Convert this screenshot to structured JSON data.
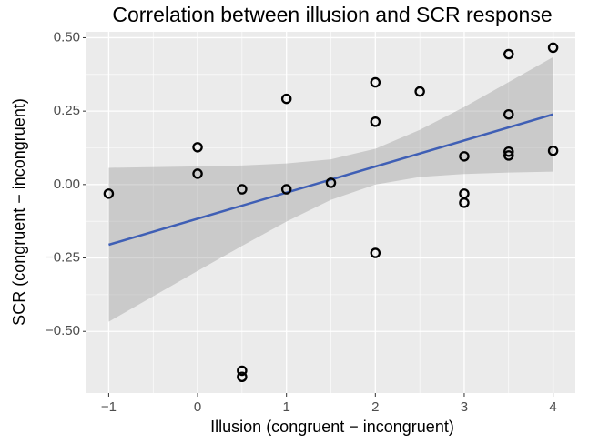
{
  "chart_data": {
    "type": "scatter",
    "title": "Correlation between illusion and SCR response",
    "x_label": "Illusion (congruent − incongruent)",
    "y_label": "SCR (congruent − incongruent)",
    "x": [
      -1,
      0,
      0,
      0.5,
      0.5,
      0.5,
      1,
      1,
      1.5,
      2,
      2,
      2,
      2.5,
      3,
      3,
      3,
      3.5,
      3.5,
      3.5,
      3.5,
      4,
      4
    ],
    "values": [
      -0.031,
      0.127,
      0.037,
      -0.016,
      -0.634,
      -0.655,
      0.292,
      -0.016,
      0.006,
      0.348,
      0.214,
      -0.233,
      0.317,
      0.096,
      -0.031,
      -0.062,
      0.444,
      0.239,
      0.112,
      0.099,
      0.466,
      0.115
    ],
    "point_color": "#000000",
    "fit": {
      "x": [
        -1,
        4
      ],
      "values": [
        -0.205,
        0.239
      ],
      "color": "#3f5fb5"
    },
    "ribbon": {
      "x": [
        -1,
        0,
        0.5,
        1,
        1.5,
        2,
        2.5,
        3,
        3.5,
        4
      ],
      "lower": [
        -0.467,
        -0.294,
        -0.209,
        -0.126,
        -0.052,
        0.0,
        0.026,
        0.036,
        0.041,
        0.044
      ],
      "upper": [
        0.057,
        0.062,
        0.065,
        0.072,
        0.086,
        0.122,
        0.186,
        0.264,
        0.349,
        0.434
      ],
      "color": "#999999"
    },
    "xlim": [
      -1.25,
      4.25
    ],
    "ylim": [
      -0.71,
      0.52
    ],
    "xticks": [
      {
        "value": -1,
        "label": "−1"
      },
      0,
      1,
      2,
      3,
      4
    ],
    "yticks": [
      {
        "value": -0.5,
        "label": "−0.50"
      },
      {
        "value": -0.25,
        "label": "−0.25"
      },
      {
        "value": 0,
        "label": "0.00"
      },
      {
        "value": 0.25,
        "label": "0.25"
      },
      {
        "value": 0.5,
        "label": "0.50"
      }
    ],
    "xminor": [
      -0.5,
      0.5,
      1.5,
      2.5,
      3.5
    ],
    "yminor": [
      -0.625,
      -0.375,
      -0.125,
      0.125,
      0.375
    ],
    "grid": true
  }
}
